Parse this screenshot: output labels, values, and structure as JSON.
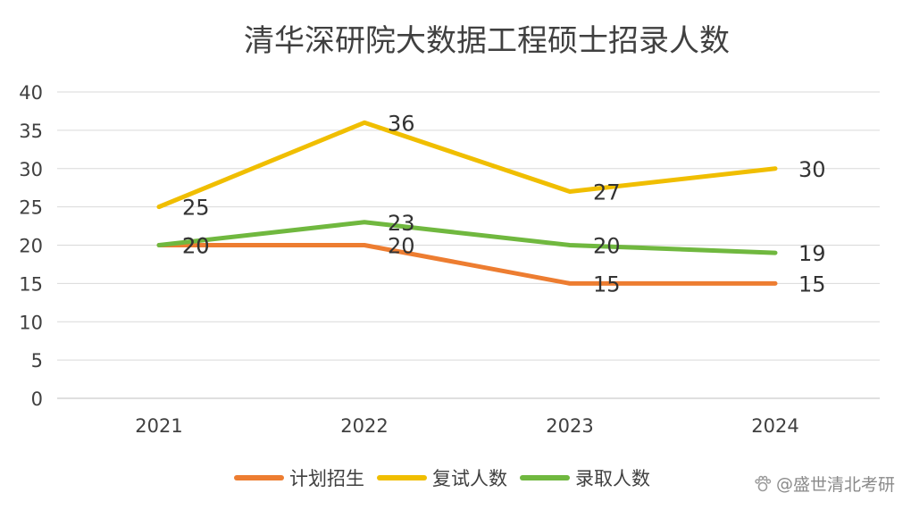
{
  "watermark": "盛世清北考研",
  "chart_data": {
    "type": "line",
    "title": "清华深研院大数据工程硕士招录人数",
    "categories": [
      "2021",
      "2022",
      "2023",
      "2024"
    ],
    "ylim": [
      0,
      40
    ],
    "yticks": [
      0,
      5,
      10,
      15,
      20,
      25,
      30,
      35,
      40
    ],
    "grid": true,
    "legend_position": "bottom",
    "series": [
      {
        "name": "计划招生",
        "color": "#ED7D31",
        "values": [
          20,
          20,
          15,
          15
        ]
      },
      {
        "name": "复试人数",
        "color": "#F0BE00",
        "values": [
          25,
          36,
          27,
          30
        ]
      },
      {
        "name": "录取人数",
        "color": "#70B83F",
        "values": [
          20,
          23,
          20,
          19
        ]
      }
    ]
  }
}
